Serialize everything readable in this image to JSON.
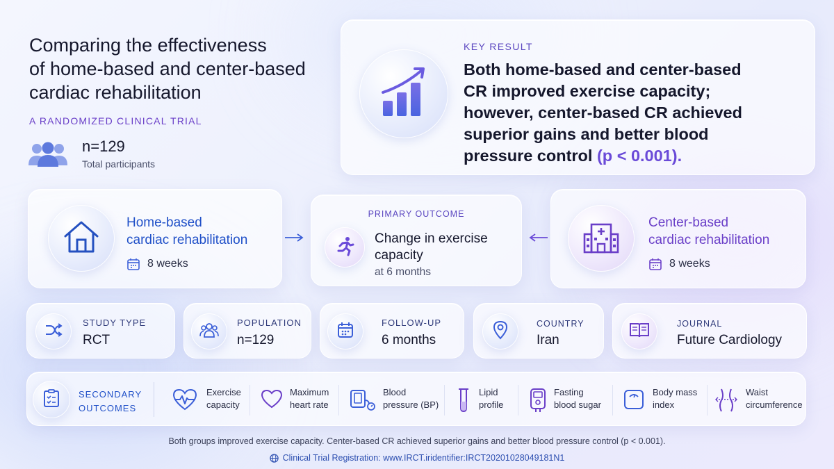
{
  "title": {
    "line1": "Comparing the effectiveness",
    "line2": "of home-based and center-based",
    "line3": "cardiac rehabilitation",
    "subtitle": "A RANDOMIZED CLINICAL TRIAL"
  },
  "participants": {
    "count": "n=129",
    "label": "Total participants",
    "icon": "users-icon"
  },
  "key_result": {
    "label": "KEY RESULT",
    "line1": "Both home-based and center-based",
    "line2": "CR improved exercise capacity;",
    "line3": "however, center-based CR achieved",
    "line4": "superior gains and better blood",
    "line5_main": "pressure control ",
    "line5_highlight": "(p < 0.001).",
    "icon": "bar-chart-trend-icon"
  },
  "home_arm": {
    "title_line1": "Home-based",
    "title_line2": "cardiac rehabilitation",
    "duration": "8 weeks",
    "icon": "house-icon"
  },
  "primary_outcome": {
    "label": "PRIMARY OUTCOME",
    "line1": "Change in exercise",
    "line2": "capacity",
    "timepoint": "at 6 months",
    "icon": "running-person-icon"
  },
  "center_arm": {
    "title_line1": "Center-based",
    "title_line2": "cardiac rehabilitation",
    "duration": "8 weeks",
    "icon": "hospital-icon"
  },
  "facts": [
    {
      "label": "STUDY TYPE",
      "value": "RCT",
      "icon": "shuffle-icon"
    },
    {
      "label": "POPULATION",
      "value": "n=129",
      "icon": "people-icon"
    },
    {
      "label": "FOLLOW-UP",
      "value": "6 months",
      "icon": "calendar-icon"
    },
    {
      "label": "COUNTRY",
      "value": "Iran",
      "icon": "location-pin-icon"
    },
    {
      "label": "JOURNAL",
      "value": "Future Cardiology",
      "icon": "book-icon"
    }
  ],
  "secondary": {
    "label_line1": "SECONDARY",
    "label_line2": "OUTCOMES",
    "items": [
      {
        "line1": "Exercise",
        "line2": "capacity",
        "icon": "heartbeat-icon"
      },
      {
        "line1": "Maximum",
        "line2": "heart rate",
        "icon": "heart-icon"
      },
      {
        "line1": "Blood",
        "line2": "pressure (BP)",
        "icon": "blood-pressure-icon"
      },
      {
        "line1": "Lipid",
        "line2": "profile",
        "icon": "test-tube-icon"
      },
      {
        "line1": "Fasting",
        "line2": "blood sugar",
        "icon": "glucose-meter-icon"
      },
      {
        "line1": "Body mass",
        "line2": "index",
        "icon": "scale-icon"
      },
      {
        "line1": "Waist",
        "line2": "circumference",
        "icon": "waist-icon"
      }
    ]
  },
  "footer": {
    "summary": "Both groups improved exercise capacity. Center-based CR achieved superior gains and better blood pressure control (p < 0.001).",
    "registration": "Clinical Trial Registration: www.IRCT.iridentifier:IRCT20201028049181N1"
  },
  "colors": {
    "blue_accent": "#2050c8",
    "purple_accent": "#6a3fc8",
    "icon_blue": "#3b5fd8"
  }
}
